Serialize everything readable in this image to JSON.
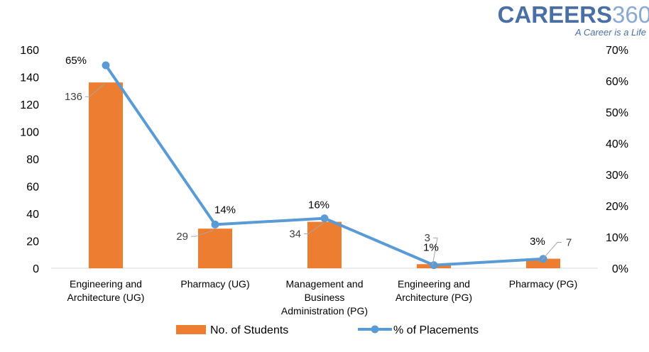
{
  "logo": {
    "main": "CAREERS",
    "num": "360",
    "tagline": "A Career is a Life"
  },
  "chart_data": {
    "type": "bar",
    "categories": [
      [
        "Engineering and",
        "Architecture (UG)"
      ],
      [
        "Pharmacy (UG)"
      ],
      [
        "Management and",
        "Business",
        "Administration (PG)"
      ],
      [
        "Engineering and",
        "Architecture (PG)"
      ],
      [
        "Pharmacy (PG)"
      ]
    ],
    "series": [
      {
        "name": "No. of Students",
        "type": "bar",
        "axis": "left",
        "color": "#ed7d31",
        "values": [
          136,
          29,
          34,
          3,
          7
        ]
      },
      {
        "name": "% of Placements",
        "type": "line",
        "axis": "right",
        "color": "#5b9bd5",
        "values": [
          65,
          14,
          16,
          1,
          3
        ]
      }
    ],
    "left_ticks": [
      "0",
      "20",
      "40",
      "60",
      "80",
      "100",
      "120",
      "140",
      "160"
    ],
    "right_ticks": [
      "0%",
      "10%",
      "20%",
      "30%",
      "40%",
      "50%",
      "60%",
      "70%"
    ],
    "ylim_left": [
      0,
      160
    ],
    "ylim_right": [
      0,
      70
    ],
    "count_labels": [
      "136",
      "29",
      "34",
      "3",
      "7"
    ],
    "pct_labels": [
      "65%",
      "14%",
      "16%",
      "1%",
      "3%"
    ],
    "grid": false,
    "legend_position": "bottom"
  }
}
